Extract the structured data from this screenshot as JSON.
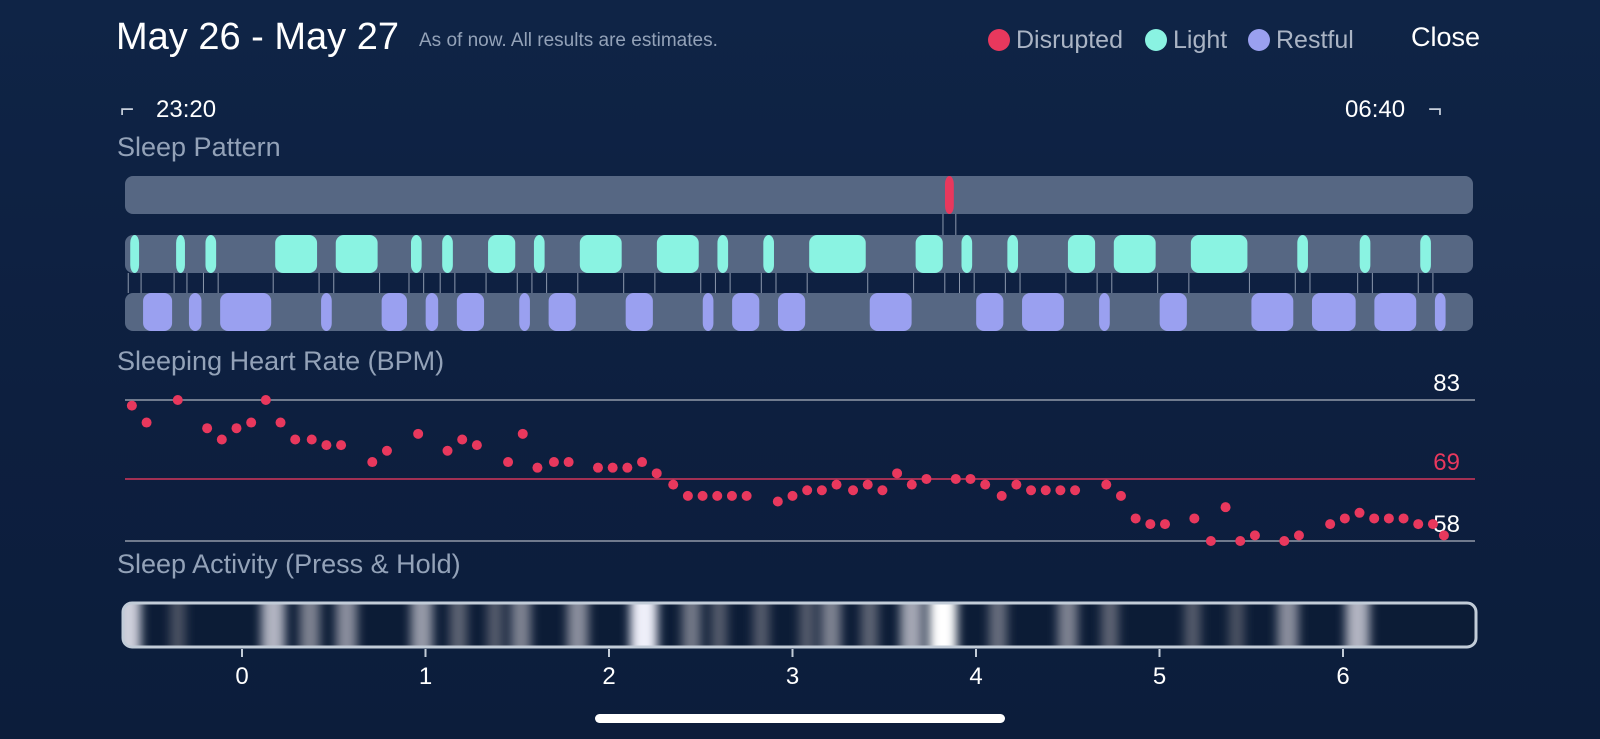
{
  "header": {
    "title": "May 26 - May 27",
    "subtitle": "As of now. All results are estimates.",
    "close_label": "Close"
  },
  "legend": [
    {
      "label": "Disrupted",
      "color": "#e8385d"
    },
    {
      "label": "Light",
      "color": "#8af3e2"
    },
    {
      "label": "Restful",
      "color": "#9aa0f0"
    }
  ],
  "time_range": {
    "start": "23:20",
    "end": "06:40"
  },
  "sections": {
    "sleep_pattern": "Sleep Pattern",
    "heart_rate": "Sleeping Heart Rate (BPM)",
    "activity": "Sleep Activity (Press & Hold)"
  },
  "chart_data": [
    {
      "type": "timeline",
      "title": "Sleep Pattern",
      "x_unit": "hours",
      "x_range": [
        -0.67,
        6.67
      ],
      "rows": [
        {
          "name": "Disrupted",
          "color": "#e8385d",
          "segments": [
            [
              3.82,
              3.89
            ]
          ]
        },
        {
          "name": "Light",
          "color": "#8af3e2",
          "segments": [
            [
              -0.62,
              -0.55
            ],
            [
              -0.37,
              -0.3
            ],
            [
              -0.21,
              -0.13
            ],
            [
              0.17,
              0.42
            ],
            [
              0.5,
              0.75
            ],
            [
              0.91,
              0.99
            ],
            [
              1.08,
              1.16
            ],
            [
              1.33,
              1.5
            ],
            [
              1.58,
              1.66
            ],
            [
              1.83,
              2.08
            ],
            [
              2.25,
              2.5
            ],
            [
              2.58,
              2.66
            ],
            [
              2.83,
              2.91
            ],
            [
              3.08,
              3.41
            ],
            [
              3.66,
              3.83
            ],
            [
              3.91,
              3.99
            ],
            [
              4.16,
              4.24
            ],
            [
              4.49,
              4.66
            ],
            [
              4.74,
              4.99
            ],
            [
              5.16,
              5.49
            ],
            [
              5.74,
              5.82
            ],
            [
              6.08,
              6.16
            ],
            [
              6.41,
              6.49
            ]
          ]
        },
        {
          "name": "Restful",
          "color": "#9aa0f0",
          "segments": [
            [
              -0.55,
              -0.37
            ],
            [
              -0.3,
              -0.21
            ],
            [
              -0.13,
              0.17
            ],
            [
              0.42,
              0.5
            ],
            [
              0.75,
              0.91
            ],
            [
              0.99,
              1.08
            ],
            [
              1.16,
              1.33
            ],
            [
              1.5,
              1.58
            ],
            [
              1.66,
              1.83
            ],
            [
              2.08,
              2.25
            ],
            [
              2.5,
              2.58
            ],
            [
              2.66,
              2.83
            ],
            [
              2.91,
              3.08
            ],
            [
              3.41,
              3.66
            ],
            [
              3.99,
              4.16
            ],
            [
              4.24,
              4.49
            ],
            [
              4.66,
              4.74
            ],
            [
              4.99,
              5.16
            ],
            [
              5.49,
              5.74
            ],
            [
              5.82,
              6.08
            ],
            [
              6.16,
              6.41
            ],
            [
              6.49,
              6.57
            ]
          ]
        }
      ]
    },
    {
      "type": "scatter",
      "title": "Sleeping Heart Rate (BPM)",
      "x_unit": "hours",
      "xlim": [
        -0.67,
        6.67
      ],
      "ylim": [
        58,
        83
      ],
      "reference_lines": [
        {
          "value": 83,
          "label": "83",
          "color": "#ffffff"
        },
        {
          "value": 69,
          "label": "69",
          "color": "#e8385d"
        },
        {
          "value": 58,
          "label": "58",
          "color": "#ffffff"
        }
      ],
      "x": [
        -0.6,
        -0.52,
        -0.35,
        -0.19,
        -0.11,
        -0.03,
        0.05,
        0.13,
        0.21,
        0.29,
        0.38,
        0.46,
        0.54,
        0.71,
        0.79,
        0.96,
        1.12,
        1.2,
        1.28,
        1.45,
        1.53,
        1.61,
        1.7,
        1.78,
        1.94,
        2.02,
        2.1,
        2.18,
        2.26,
        2.35,
        2.43,
        2.51,
        2.59,
        2.67,
        2.75,
        2.92,
        3.0,
        3.08,
        3.16,
        3.24,
        3.33,
        3.41,
        3.49,
        3.57,
        3.65,
        3.73,
        3.89,
        3.97,
        4.05,
        4.14,
        4.22,
        4.3,
        4.38,
        4.46,
        4.54,
        4.71,
        4.79,
        4.87,
        4.95,
        5.03,
        5.19,
        5.28,
        5.36,
        5.44,
        5.52,
        5.68,
        5.76,
        5.93,
        6.01,
        6.09,
        6.17,
        6.25,
        6.33,
        6.41,
        6.49,
        6.55
      ],
      "y": [
        82,
        79,
        83,
        78,
        76,
        78,
        79,
        83,
        79,
        76,
        76,
        75,
        75,
        72,
        74,
        77,
        74,
        76,
        75,
        72,
        77,
        71,
        72,
        72,
        71,
        71,
        71,
        72,
        70,
        68,
        66,
        66,
        66,
        66,
        66,
        65,
        66,
        67,
        67,
        68,
        67,
        68,
        67,
        70,
        68,
        69,
        69,
        69,
        68,
        66,
        68,
        67,
        67,
        67,
        67,
        68,
        66,
        62,
        61,
        61,
        62,
        58,
        64,
        58,
        59,
        58,
        59,
        61,
        62,
        63,
        62,
        62,
        62,
        61,
        61,
        59
      ]
    },
    {
      "type": "heatmap",
      "title": "Sleep Activity (Press & Hold)",
      "x_unit": "hours",
      "xlim": [
        -0.67,
        6.67
      ],
      "x_ticks": [
        0,
        1,
        2,
        3,
        4,
        5,
        6
      ],
      "intensity_x": [
        -0.62,
        -0.35,
        0.17,
        0.37,
        0.57,
        0.98,
        1.18,
        1.38,
        1.52,
        1.83,
        2.19,
        2.45,
        2.6,
        2.83,
        3.08,
        3.21,
        3.42,
        3.65,
        3.82,
        4.12,
        4.5,
        4.73,
        5.18,
        5.42,
        5.7,
        6.08
      ],
      "intensity": [
        0.85,
        0.3,
        0.75,
        0.55,
        0.6,
        0.65,
        0.4,
        0.35,
        0.55,
        0.6,
        0.95,
        0.5,
        0.35,
        0.35,
        0.35,
        0.55,
        0.4,
        0.7,
        1.0,
        0.45,
        0.55,
        0.4,
        0.35,
        0.3,
        0.6,
        0.75
      ]
    }
  ]
}
